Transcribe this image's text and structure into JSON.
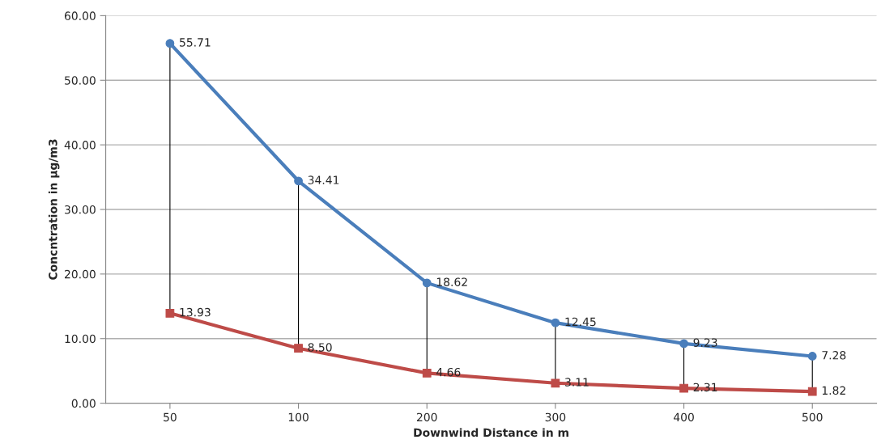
{
  "chart_data": {
    "type": "line",
    "xlabel": "Downwind Distance in m",
    "ylabel": "Concntration in µg/m3",
    "categories": [
      "50",
      "100",
      "200",
      "300",
      "400",
      "500"
    ],
    "series": [
      {
        "color": "#4a7ebb",
        "marker": "circle",
        "values": [
          55.71,
          34.41,
          18.62,
          12.45,
          9.23,
          7.28
        ],
        "value_labels": [
          "55.71",
          "34.41",
          "18.62",
          "12.45",
          "9.23",
          "7.28"
        ]
      },
      {
        "color": "#be4b48",
        "marker": "square",
        "values": [
          13.93,
          8.5,
          4.66,
          3.11,
          2.31,
          1.82
        ],
        "value_labels": [
          "13.93",
          "8.50",
          "4.66",
          "3.11",
          "2.31",
          "1.82"
        ]
      }
    ],
    "ylim": [
      0,
      60
    ],
    "yticks": [
      {
        "value": 0,
        "label": "0.00"
      },
      {
        "value": 10,
        "label": "10.00"
      },
      {
        "value": 20,
        "label": "20.00"
      },
      {
        "value": 30,
        "label": "30.00"
      },
      {
        "value": 40,
        "label": "40.00"
      },
      {
        "value": 50,
        "label": "50.00"
      },
      {
        "value": 60,
        "label": "60.00"
      }
    ],
    "grid": "y",
    "legend": false
  }
}
